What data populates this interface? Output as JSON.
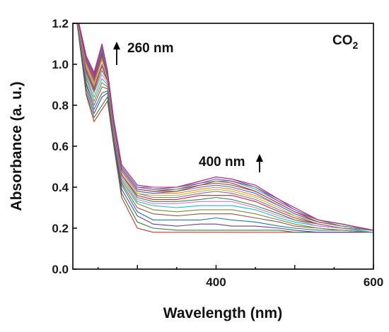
{
  "chart_data": {
    "type": "line",
    "xlabel": "Wavelength (nm)",
    "ylabel": "Absorbance (a. u.)",
    "xlim": [
      218,
      600
    ],
    "ylim": [
      0.0,
      1.2
    ],
    "xticks": [
      400,
      600
    ],
    "yticks": [
      "0.0",
      "0.2",
      "0.4",
      "0.6",
      "0.8",
      "1.0",
      "1.2"
    ],
    "grid": false,
    "annotations": {
      "gas": "CO",
      "gas_subscript": "2",
      "peak1": "260 nm",
      "peak2": "400 nm"
    },
    "arrows": [
      "up",
      "up"
    ],
    "x": [
      220,
      235,
      245,
      255,
      262,
      270,
      280,
      300,
      320,
      350,
      380,
      400,
      420,
      450,
      480,
      500,
      530,
      560,
      600
    ],
    "series": [
      {
        "color": "#c0392b",
        "values": [
          1.3,
          0.85,
          0.72,
          0.78,
          0.82,
          0.6,
          0.35,
          0.2,
          0.18,
          0.18,
          0.18,
          0.18,
          0.18,
          0.18,
          0.18,
          0.18,
          0.18,
          0.18,
          0.18
        ]
      },
      {
        "color": "#2d7f3a",
        "values": [
          1.3,
          0.86,
          0.74,
          0.8,
          0.84,
          0.62,
          0.37,
          0.23,
          0.2,
          0.19,
          0.19,
          0.19,
          0.19,
          0.19,
          0.19,
          0.18,
          0.18,
          0.18,
          0.18
        ]
      },
      {
        "color": "#6a3d9a",
        "values": [
          1.3,
          0.88,
          0.76,
          0.84,
          0.86,
          0.63,
          0.39,
          0.26,
          0.22,
          0.21,
          0.22,
          0.22,
          0.21,
          0.21,
          0.2,
          0.19,
          0.18,
          0.18,
          0.18
        ]
      },
      {
        "color": "#1f77b4",
        "values": [
          1.3,
          0.9,
          0.78,
          0.86,
          0.87,
          0.64,
          0.41,
          0.28,
          0.24,
          0.24,
          0.24,
          0.25,
          0.24,
          0.23,
          0.21,
          0.2,
          0.19,
          0.19,
          0.18
        ]
      },
      {
        "color": "#8c564b",
        "values": [
          1.3,
          0.91,
          0.8,
          0.89,
          0.88,
          0.65,
          0.42,
          0.3,
          0.27,
          0.26,
          0.27,
          0.27,
          0.27,
          0.25,
          0.23,
          0.21,
          0.2,
          0.19,
          0.18
        ]
      },
      {
        "color": "#7f8c2a",
        "values": [
          1.3,
          0.93,
          0.82,
          0.91,
          0.89,
          0.66,
          0.43,
          0.32,
          0.29,
          0.28,
          0.29,
          0.29,
          0.29,
          0.27,
          0.24,
          0.22,
          0.2,
          0.19,
          0.18
        ]
      },
      {
        "color": "#17becf",
        "values": [
          1.3,
          0.94,
          0.84,
          0.93,
          0.9,
          0.66,
          0.44,
          0.33,
          0.31,
          0.3,
          0.31,
          0.31,
          0.31,
          0.29,
          0.25,
          0.23,
          0.21,
          0.2,
          0.18
        ]
      },
      {
        "color": "#e377c2",
        "values": [
          1.3,
          0.95,
          0.86,
          0.95,
          0.91,
          0.67,
          0.45,
          0.34,
          0.32,
          0.32,
          0.33,
          0.33,
          0.33,
          0.3,
          0.26,
          0.24,
          0.21,
          0.2,
          0.19
        ]
      },
      {
        "color": "#2e8b57",
        "values": [
          1.3,
          0.96,
          0.87,
          0.97,
          0.92,
          0.68,
          0.46,
          0.35,
          0.33,
          0.33,
          0.34,
          0.35,
          0.34,
          0.31,
          0.27,
          0.24,
          0.22,
          0.2,
          0.19
        ]
      },
      {
        "color": "#d62728",
        "values": [
          1.3,
          0.97,
          0.88,
          0.99,
          0.92,
          0.68,
          0.46,
          0.36,
          0.34,
          0.34,
          0.36,
          0.36,
          0.36,
          0.33,
          0.28,
          0.25,
          0.22,
          0.2,
          0.19
        ]
      },
      {
        "color": "#9467bd",
        "values": [
          1.3,
          0.98,
          0.89,
          1.0,
          0.93,
          0.69,
          0.47,
          0.37,
          0.35,
          0.35,
          0.37,
          0.38,
          0.37,
          0.34,
          0.29,
          0.26,
          0.22,
          0.2,
          0.19
        ]
      },
      {
        "color": "#bcbd22",
        "values": [
          1.3,
          0.99,
          0.9,
          1.02,
          0.93,
          0.69,
          0.47,
          0.37,
          0.36,
          0.36,
          0.38,
          0.39,
          0.38,
          0.35,
          0.3,
          0.26,
          0.23,
          0.21,
          0.19
        ]
      },
      {
        "color": "#ff7f0e",
        "values": [
          1.3,
          1.0,
          0.91,
          1.03,
          0.94,
          0.7,
          0.48,
          0.38,
          0.37,
          0.37,
          0.39,
          0.4,
          0.39,
          0.36,
          0.31,
          0.27,
          0.23,
          0.21,
          0.19
        ]
      },
      {
        "color": "#4169e1",
        "values": [
          1.3,
          1.01,
          0.92,
          1.04,
          0.94,
          0.7,
          0.48,
          0.38,
          0.37,
          0.38,
          0.4,
          0.41,
          0.4,
          0.37,
          0.31,
          0.27,
          0.23,
          0.21,
          0.19
        ]
      },
      {
        "color": "#a0522d",
        "values": [
          1.3,
          1.02,
          0.93,
          1.05,
          0.95,
          0.71,
          0.49,
          0.39,
          0.38,
          0.38,
          0.41,
          0.42,
          0.41,
          0.38,
          0.32,
          0.28,
          0.23,
          0.21,
          0.19
        ]
      },
      {
        "color": "#b03060",
        "values": [
          1.3,
          1.02,
          0.94,
          1.06,
          0.95,
          0.71,
          0.49,
          0.39,
          0.38,
          0.39,
          0.41,
          0.43,
          0.42,
          0.38,
          0.32,
          0.28,
          0.24,
          0.21,
          0.19
        ]
      },
      {
        "color": "#3cb371",
        "values": [
          1.3,
          1.03,
          0.95,
          1.07,
          0.96,
          0.72,
          0.5,
          0.4,
          0.39,
          0.39,
          0.42,
          0.43,
          0.43,
          0.39,
          0.33,
          0.29,
          0.24,
          0.21,
          0.19
        ]
      },
      {
        "color": "#8e44ad",
        "values": [
          1.3,
          1.03,
          0.95,
          1.08,
          0.96,
          0.72,
          0.5,
          0.4,
          0.39,
          0.4,
          0.42,
          0.44,
          0.43,
          0.4,
          0.33,
          0.29,
          0.24,
          0.22,
          0.19
        ]
      },
      {
        "color": "#5b7fa6",
        "values": [
          1.3,
          1.04,
          0.96,
          1.09,
          0.96,
          0.72,
          0.5,
          0.4,
          0.4,
          0.4,
          0.43,
          0.45,
          0.44,
          0.4,
          0.34,
          0.29,
          0.24,
          0.22,
          0.19
        ]
      },
      {
        "color": "#c71585",
        "values": [
          1.3,
          1.04,
          0.96,
          1.1,
          0.97,
          0.73,
          0.51,
          0.41,
          0.4,
          0.4,
          0.43,
          0.45,
          0.44,
          0.41,
          0.34,
          0.3,
          0.24,
          0.22,
          0.19
        ]
      }
    ]
  }
}
